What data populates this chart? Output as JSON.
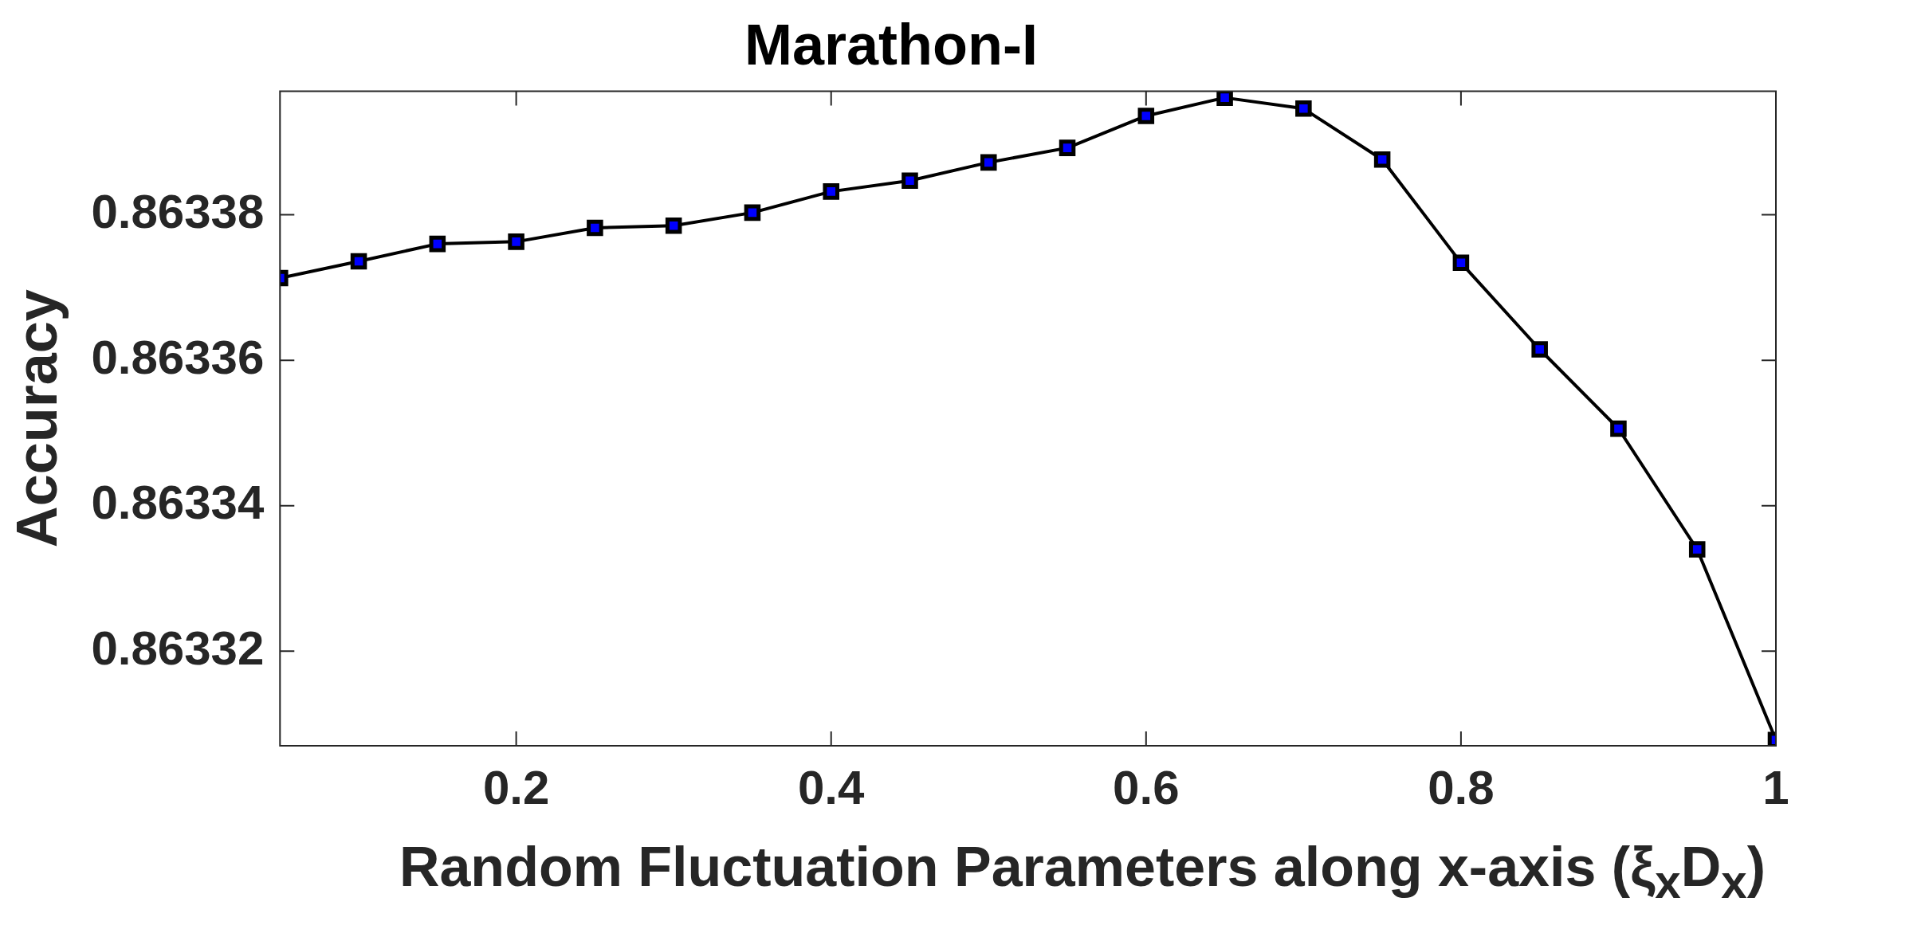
{
  "chart_data": {
    "type": "line",
    "title": "Marathon-I",
    "xlabel": "Random Fluctuation Parameters along x-axis (ξ$_{x}$D$_{x}$)",
    "ylabel": "Accuracy",
    "x": [
      0.05,
      0.1,
      0.15,
      0.2,
      0.25,
      0.3,
      0.35,
      0.4,
      0.45,
      0.5,
      0.55,
      0.6,
      0.65,
      0.7,
      0.75,
      0.8,
      0.85,
      0.9,
      0.95,
      1.0
    ],
    "series": [
      {
        "color": "#000000",
        "values": [
          0.8633713,
          0.8633736,
          0.863376,
          0.8633763,
          0.8633782,
          0.8633785,
          0.8633803,
          0.8633832,
          0.8633847,
          0.8633872,
          0.8633892,
          0.8633936,
          0.8633961,
          0.8633946,
          0.8633876,
          0.8633734,
          0.8633615,
          0.8633506,
          0.863334,
          0.8633078
        ]
      }
    ],
    "xlim": [
      0.05,
      1
    ],
    "xticks": [
      0.2,
      0.4,
      0.6,
      0.8,
      1
    ],
    "ylim": [
      0.863307,
      0.863397
    ],
    "yticks": [
      {
        "value": 0.86332,
        "label": "0.86332"
      },
      {
        "value": 0.86334,
        "label": "0.86334"
      },
      {
        "value": 0.86336,
        "label": "0.86336"
      },
      {
        "value": 0.86338,
        "label": "0.86338"
      }
    ],
    "marker": "square",
    "line_style": "solid",
    "grid": false,
    "legend": false
  }
}
